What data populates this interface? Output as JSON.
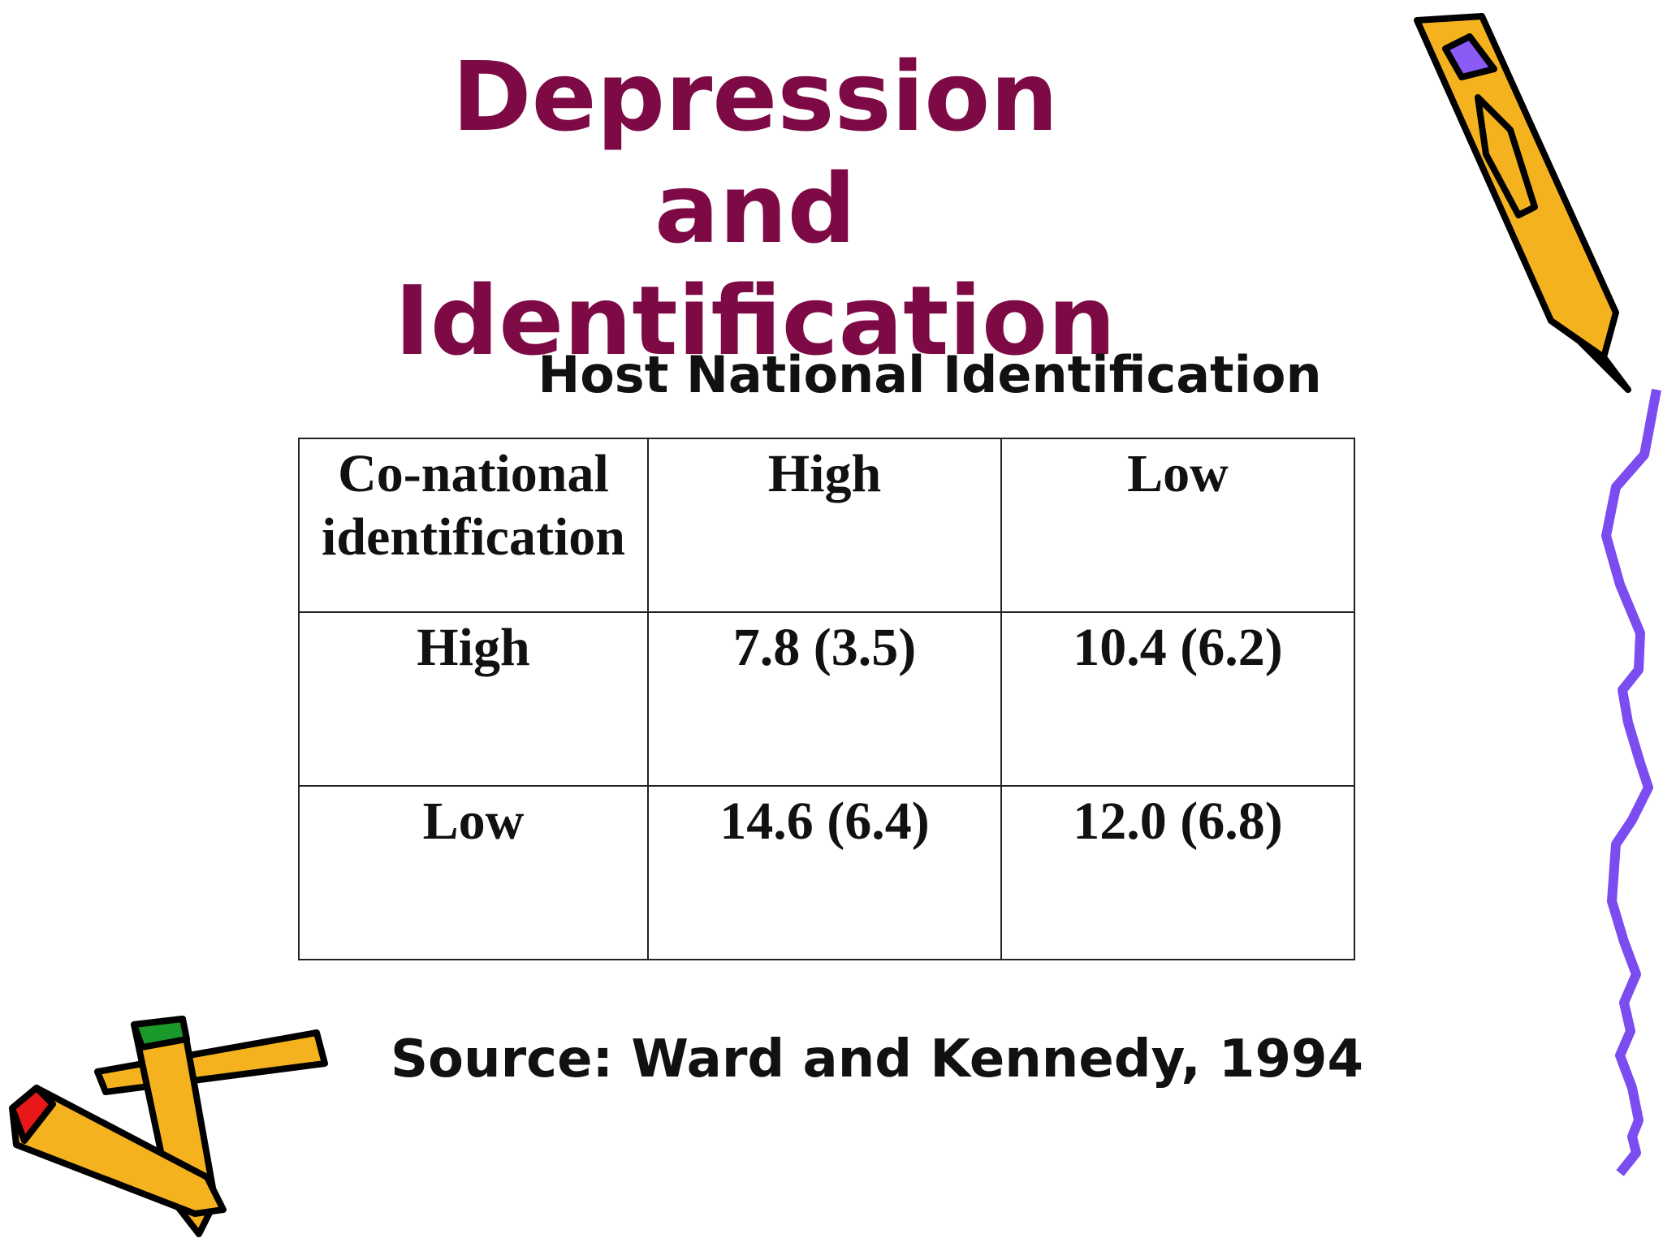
{
  "title": "Depression and Identification",
  "subtitle": "Host National Identification",
  "table": {
    "header": [
      "Co-national identification",
      "High",
      "Low"
    ],
    "rows": [
      [
        "High",
        "7.8 (3.5)",
        "10.4 (6.2)"
      ],
      [
        "Low",
        "14.6 (6.4)",
        "12.0 (6.8)"
      ]
    ]
  },
  "source": "Source: Ward and Kennedy, 1994"
}
